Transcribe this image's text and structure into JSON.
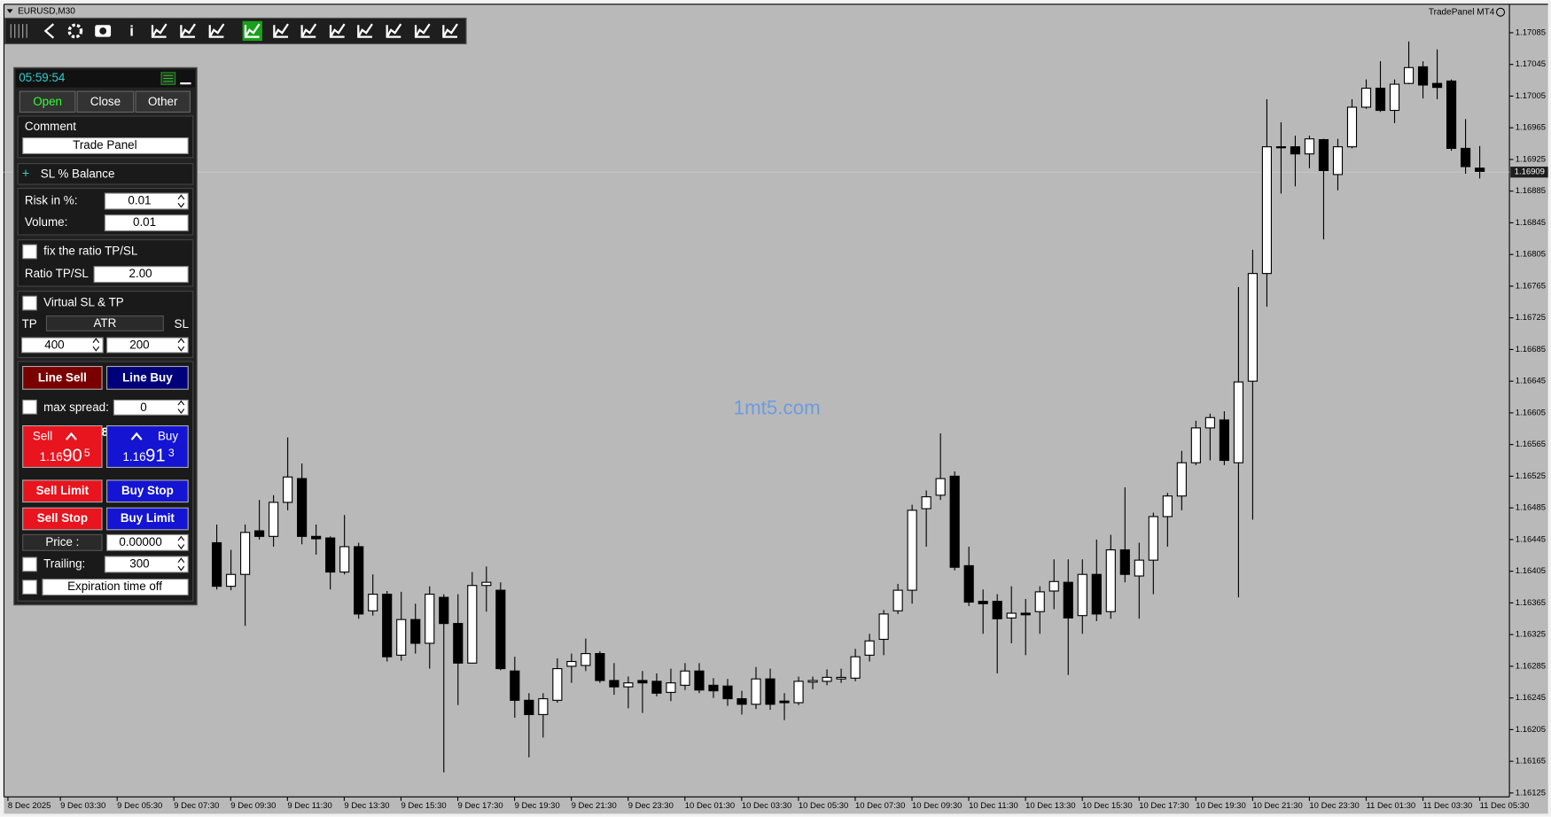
{
  "chart_data": {
    "type": "candlestick",
    "title": "EURUSD,M30",
    "brand": "TradePanel MT4",
    "watermark": "1mt5.com",
    "current_price": 1.16909,
    "open": [
      1.16441,
      1.16386,
      1.16401,
      1.16456,
      1.16449,
      1.16492,
      1.16522,
      1.16449,
      1.16447,
      1.16404,
      1.16436,
      1.16355,
      1.16376,
      1.16299,
      1.16344,
      1.16314,
      1.16372,
      1.16339,
      1.16289,
      1.16387,
      1.16381,
      1.16279,
      1.16242,
      1.16224,
      1.16242,
      1.16285,
      1.16286,
      1.16301,
      1.16267,
      1.16259,
      1.16267,
      1.16266,
      1.16252,
      1.16261,
      1.16279,
      1.16261,
      1.1626,
      1.16244,
      1.16237,
      1.16269,
      1.16241,
      1.16239,
      1.16265,
      1.16266,
      1.16269,
      1.1627,
      1.16299,
      1.16319,
      1.16355,
      1.16381,
      1.16484,
      1.16501,
      1.16525,
      1.16412,
      1.16367,
      1.16367,
      1.16346,
      1.16352,
      1.16354,
      1.1638,
      1.16391,
      1.16349,
      1.16401,
      1.16354,
      1.16432,
      1.16399,
      1.16419,
      1.16474,
      1.165,
      1.16542,
      1.16586,
      1.16596,
      1.16542,
      1.16645,
      1.16781,
      1.16941,
      1.16941,
      1.16932,
      1.1695,
      1.16906,
      1.16941,
      1.16991,
      1.17015,
      1.16987,
      1.17021,
      1.17042,
      1.17021,
      1.17024,
      1.16939,
      1.16914
    ],
    "high": [
      1.16464,
      1.16432,
      1.16464,
      1.16495,
      1.16501,
      1.16574,
      1.16541,
      1.16464,
      1.16449,
      1.16476,
      1.16441,
      1.16401,
      1.1638,
      1.16379,
      1.16364,
      1.16386,
      1.16376,
      1.16376,
      1.16404,
      1.16411,
      1.16391,
      1.16297,
      1.16251,
      1.16251,
      1.16295,
      1.16301,
      1.1632,
      1.16304,
      1.16289,
      1.16272,
      1.16279,
      1.16276,
      1.16282,
      1.16289,
      1.16289,
      1.1627,
      1.16269,
      1.16254,
      1.16284,
      1.16282,
      1.16251,
      1.16272,
      1.16272,
      1.16281,
      1.16282,
      1.16307,
      1.16326,
      1.16356,
      1.16389,
      1.16489,
      1.16507,
      1.16579,
      1.16531,
      1.16436,
      1.16382,
      1.16376,
      1.16386,
      1.1637,
      1.16386,
      1.1642,
      1.1642,
      1.1642,
      1.16445,
      1.16451,
      1.16511,
      1.16441,
      1.16479,
      1.16504,
      1.16557,
      1.16595,
      1.16604,
      1.16607,
      1.16764,
      1.16811,
      1.17001,
      1.16972,
      1.16955,
      1.16955,
      1.16951,
      1.16951,
      1.17001,
      1.17026,
      1.17049,
      1.17026,
      1.17074,
      1.17049,
      1.17064,
      1.17026,
      1.16976,
      1.16942
    ],
    "low": [
      1.16382,
      1.16381,
      1.16336,
      1.16445,
      1.16436,
      1.16482,
      1.16439,
      1.16426,
      1.16382,
      1.16401,
      1.16345,
      1.16349,
      1.16291,
      1.16292,
      1.16301,
      1.16282,
      1.16151,
      1.16236,
      1.16289,
      1.16354,
      1.1628,
      1.1622,
      1.1617,
      1.16195,
      1.16239,
      1.16264,
      1.16279,
      1.16264,
      1.16249,
      1.16232,
      1.16226,
      1.16247,
      1.16241,
      1.16255,
      1.16251,
      1.16245,
      1.16235,
      1.16224,
      1.16231,
      1.1623,
      1.16217,
      1.16236,
      1.16256,
      1.16261,
      1.16264,
      1.16266,
      1.16291,
      1.16299,
      1.16351,
      1.16364,
      1.16436,
      1.16495,
      1.16406,
      1.16361,
      1.16326,
      1.16276,
      1.16314,
      1.16299,
      1.16326,
      1.16357,
      1.16274,
      1.16326,
      1.16342,
      1.16345,
      1.16391,
      1.16345,
      1.16376,
      1.16436,
      1.16482,
      1.16539,
      1.16545,
      1.16539,
      1.16372,
      1.1647,
      1.16739,
      1.16882,
      1.16891,
      1.16914,
      1.16824,
      1.16886,
      1.16939,
      1.16989,
      1.16985,
      1.16971,
      1.1702,
      1.17002,
      1.17001,
      1.16936,
      1.16907,
      1.16901
    ],
    "close": [
      1.16386,
      1.16401,
      1.16454,
      1.16449,
      1.16492,
      1.16524,
      1.16449,
      1.16446,
      1.16404,
      1.16436,
      1.16351,
      1.16376,
      1.16297,
      1.16344,
      1.16314,
      1.16376,
      1.16339,
      1.16289,
      1.16387,
      1.16391,
      1.16282,
      1.16242,
      1.16224,
      1.16244,
      1.16282,
      1.16291,
      1.16301,
      1.16267,
      1.16259,
      1.16264,
      1.16264,
      1.16251,
      1.16264,
      1.16279,
      1.16255,
      1.16254,
      1.16244,
      1.16237,
      1.16269,
      1.16237,
      1.16239,
      1.16266,
      1.16267,
      1.16271,
      1.16271,
      1.16297,
      1.16317,
      1.16351,
      1.16381,
      1.16482,
      1.16499,
      1.16522,
      1.1641,
      1.16366,
      1.16364,
      1.16345,
      1.16352,
      1.1635,
      1.16379,
      1.16392,
      1.16346,
      1.16401,
      1.16351,
      1.16432,
      1.16401,
      1.16419,
      1.16474,
      1.165,
      1.16542,
      1.16586,
      1.16599,
      1.16545,
      1.16644,
      1.16781,
      1.16941,
      1.1694,
      1.16932,
      1.16951,
      1.16911,
      1.16941,
      1.16991,
      1.17015,
      1.16987,
      1.1702,
      1.17041,
      1.17019,
      1.17016,
      1.16939,
      1.16916,
      1.1691
    ],
    "xtick_labels": [
      "8 Dec 2025",
      "9 Dec 03:30",
      "9 Dec 05:30",
      "9 Dec 07:30",
      "9 Dec 09:30",
      "9 Dec 11:30",
      "9 Dec 13:30",
      "9 Dec 15:30",
      "9 Dec 17:30",
      "9 Dec 19:30",
      "9 Dec 21:30",
      "9 Dec 23:30",
      "10 Dec 01:30",
      "10 Dec 03:30",
      "10 Dec 05:30",
      "10 Dec 07:30",
      "10 Dec 09:30",
      "10 Dec 11:30",
      "10 Dec 13:30",
      "10 Dec 15:30",
      "10 Dec 17:30",
      "10 Dec 19:30",
      "10 Dec 21:30",
      "10 Dec 23:30",
      "11 Dec 01:30",
      "11 Dec 03:30",
      "11 Dec 05:30"
    ],
    "ylim": [
      1.1612,
      1.17121
    ],
    "yticks": [
      1.17085,
      1.17045,
      1.17005,
      1.16965,
      1.16925,
      1.16885,
      1.16845,
      1.16805,
      1.16765,
      1.16725,
      1.16685,
      1.16645,
      1.16605,
      1.16565,
      1.16525,
      1.16485,
      1.16445,
      1.16405,
      1.16365,
      1.16325,
      1.16285,
      1.16245,
      1.16205,
      1.16165,
      1.16125
    ],
    "bull_color": "#ffffff",
    "bear_color": "#000000",
    "grid": false
  },
  "panel": {
    "time": "05:59:54",
    "tabs": [
      "Open",
      "Close",
      "Other"
    ],
    "comment_label": "Comment",
    "comment": "Trade Panel",
    "sl_mode": "SL % Balance",
    "risk_label": "Risk in %:",
    "risk": "0.01",
    "volume_label": "Volume:",
    "volume": "0.01",
    "fix_ratio": "fix the ratio TP/SL",
    "ratio_label": "Ratio TP/SL",
    "ratio": "2.00",
    "virtual": "Virtual SL & TP",
    "tp_label": "TP",
    "atr": "ATR",
    "sl_label": "SL",
    "tp": "400",
    "sl": "200",
    "line_sell": "Line Sell",
    "line_buy": "Line Buy",
    "max_spread_label": "max spread:",
    "max_spread": "0",
    "sell": "Sell",
    "buy": "Buy",
    "spread": "8",
    "sell_price": {
      "prefix": "1.16",
      "big": "90",
      "small": "5"
    },
    "buy_price": {
      "prefix": "1.16",
      "big": "91",
      "small": "3"
    },
    "sell_limit": "Sell Limit",
    "buy_stop": "Buy Stop",
    "sell_stop": "Sell Stop",
    "buy_limit": "Buy Limit",
    "price_label": "Price :",
    "price": "0.00000",
    "trailing_label": "Trailing:",
    "trailing": "300",
    "expiration": "Expiration time off"
  }
}
